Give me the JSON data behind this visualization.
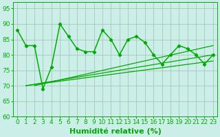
{
  "title": "",
  "xlabel": "Humidité relative (%)",
  "ylabel": "",
  "background_color": "#cceee8",
  "grid_color": "#aaccbb",
  "line_color": "#00aa00",
  "xlim": [
    -0.5,
    23.5
  ],
  "ylim": [
    60,
    97
  ],
  "yticks": [
    60,
    65,
    70,
    75,
    80,
    85,
    90,
    95
  ],
  "xticks": [
    0,
    1,
    2,
    3,
    4,
    5,
    6,
    7,
    8,
    9,
    10,
    11,
    12,
    13,
    14,
    15,
    16,
    17,
    18,
    19,
    20,
    21,
    22,
    23
  ],
  "main_series": [
    88,
    83,
    83,
    69,
    76,
    90,
    86,
    82,
    81,
    81,
    88,
    85,
    80,
    85,
    86,
    84,
    80,
    77,
    80,
    83,
    82,
    80,
    77,
    80
  ],
  "trend_lines": [
    {
      "x0": 1,
      "y0": 70,
      "x1": 23,
      "y1": 78
    },
    {
      "x0": 1,
      "y0": 70,
      "x1": 23,
      "y1": 80
    },
    {
      "x0": 2,
      "y0": 70,
      "x1": 23,
      "y1": 83
    }
  ],
  "xlabel_fontsize": 8,
  "tick_fontsize": 6.5
}
